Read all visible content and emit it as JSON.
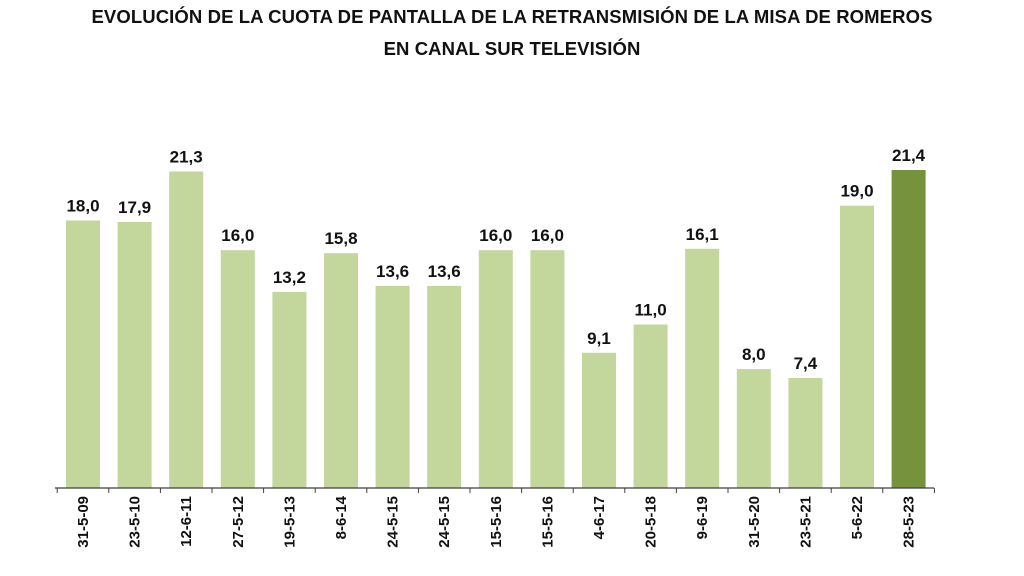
{
  "chart_data": {
    "type": "bar",
    "title_lines": [
      "EVOLUCIÓN DE LA CUOTA DE PANTALLA DE LA RETRANSMISIÓN DE LA MISA DE ROMEROS",
      "EN CANAL SUR TELEVISIÓN"
    ],
    "categories": [
      "31-5-09",
      "23-5-10",
      "12-6-11",
      "27-5-12",
      "19-5-13",
      "8-6-14",
      "24-5-15",
      "24-5-15",
      "15-5-16",
      "15-5-16",
      "4-6-17",
      "20-5-18",
      "9-6-19",
      "31-5-20",
      "23-5-21",
      "5-6-22",
      "28-5-23"
    ],
    "values": [
      18.0,
      17.9,
      21.3,
      16.0,
      13.2,
      15.8,
      13.6,
      13.6,
      16.0,
      16.0,
      9.1,
      11.0,
      16.1,
      8.0,
      7.4,
      19.0,
      21.4
    ],
    "value_labels": [
      "18,0",
      "17,9",
      "21,3",
      "16,0",
      "13,2",
      "15,8",
      "13,6",
      "13,6",
      "16,0",
      "16,0",
      "9,1",
      "11,0",
      "16,1",
      "8,0",
      "7,4",
      "19,0",
      "21,4"
    ],
    "highlight_index": 16,
    "colors": {
      "bar": "#c3d69b",
      "highlight": "#76923c",
      "axis": "#404040",
      "text": "#111111"
    },
    "xlabel": "",
    "ylabel": "",
    "ylim": [
      0,
      21.4
    ],
    "grid": false,
    "legend": "none"
  }
}
